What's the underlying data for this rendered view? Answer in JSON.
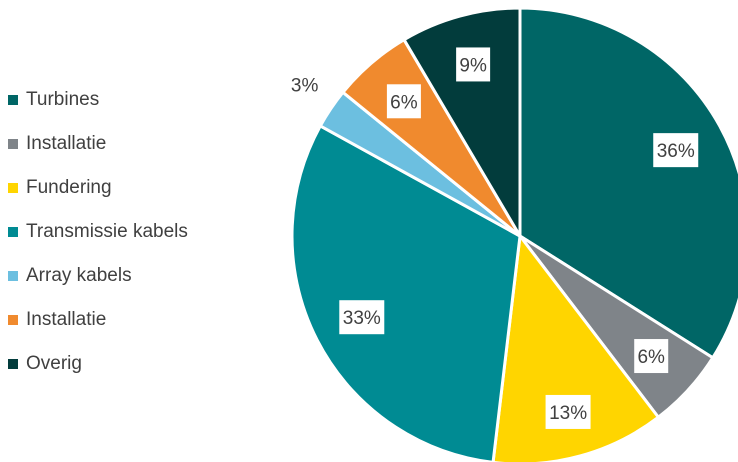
{
  "chart_data": {
    "type": "pie",
    "title": "",
    "slices": [
      {
        "label": "Turbines",
        "value": 36,
        "display": "36%",
        "color": "#006666"
      },
      {
        "label": "Installatie",
        "value": 6,
        "display": "6%",
        "color": "#7f8489"
      },
      {
        "label": "Fundering",
        "value": 13,
        "display": "13%",
        "color": "#ffd500"
      },
      {
        "label": "Transmissie kabels",
        "value": 33,
        "display": "33%",
        "color": "#008b93"
      },
      {
        "label": "Array kabels",
        "value": 3,
        "display": "3%",
        "color": "#6cbfe0"
      },
      {
        "label": "Installatie",
        "value": 6,
        "display": "6%",
        "color": "#f08a2e"
      },
      {
        "label": "Overig",
        "value": 9,
        "display": "9%",
        "color": "#023c3c"
      }
    ],
    "legend_position": "left",
    "start_angle": "12 o'clock",
    "direction": "clockwise"
  }
}
